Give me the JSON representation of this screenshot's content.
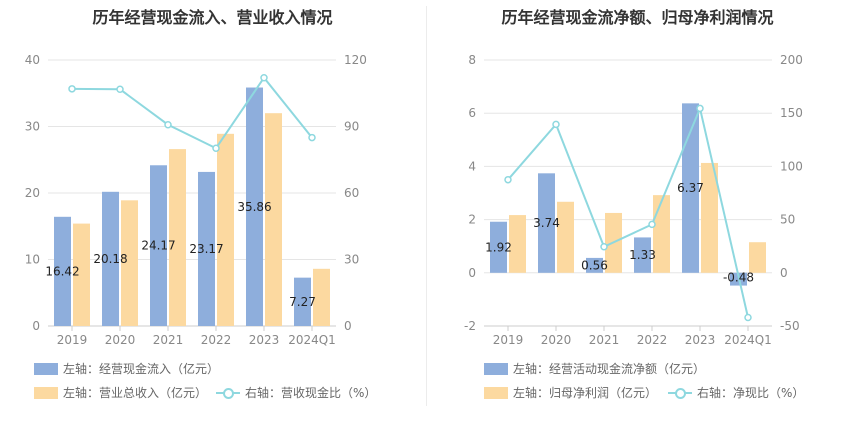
{
  "colors": {
    "bar1": "#8eaedc",
    "bar2": "#fcd9a0",
    "line": "#8ed8df",
    "grid": "#e5e5e5"
  },
  "chart_data": [
    {
      "type": "bar",
      "title": "历年经营现金流入、营业收入情况",
      "categories": [
        "2019",
        "2020",
        "2021",
        "2022",
        "2023",
        "2024Q1"
      ],
      "series": [
        {
          "name": "左轴：经营现金流入（亿元）",
          "axis": "left",
          "type": "bar",
          "values": [
            16.42,
            20.18,
            24.17,
            23.17,
            35.86,
            7.27
          ],
          "data_labels": [
            "16.42",
            "20.18",
            "24.17",
            "23.17",
            "35.86",
            "7.27"
          ]
        },
        {
          "name": "左轴：营业总收入（亿元）",
          "axis": "left",
          "type": "bar",
          "values": [
            15.4,
            18.9,
            26.6,
            28.9,
            32.0,
            8.6
          ]
        },
        {
          "name": "右轴：营收现金比（%）",
          "axis": "right",
          "type": "line",
          "values": [
            107,
            106.8,
            90.8,
            80.2,
            112,
            85
          ]
        }
      ],
      "yleft": {
        "min": 0,
        "max": 40,
        "ticks": [
          "0",
          "10",
          "20",
          "30",
          "40"
        ]
      },
      "yright": {
        "min": 0,
        "max": 120,
        "ticks": [
          "0",
          "30",
          "60",
          "90",
          "120"
        ]
      },
      "grid": true,
      "legend_position": "bottom"
    },
    {
      "type": "bar",
      "title": "历年经营现金流净额、归母净利润情况",
      "categories": [
        "2019",
        "2020",
        "2021",
        "2022",
        "2023",
        "2024Q1"
      ],
      "series": [
        {
          "name": "左轴：经营活动现金流净额（亿元）",
          "axis": "left",
          "type": "bar",
          "values": [
            1.92,
            3.74,
            0.56,
            1.33,
            6.37,
            -0.48
          ],
          "data_labels": [
            "1.92",
            "3.74",
            "0.56",
            "1.33",
            "6.37",
            "-0.48"
          ]
        },
        {
          "name": "左轴：归母净利润（亿元）",
          "axis": "left",
          "type": "bar",
          "values": [
            2.17,
            2.67,
            2.25,
            2.92,
            4.13,
            1.15
          ]
        },
        {
          "name": "右轴：净现比（%）",
          "axis": "right",
          "type": "line",
          "values": [
            87.5,
            139.5,
            24.5,
            45.5,
            154.5,
            -42
          ]
        }
      ],
      "yleft": {
        "min": -2,
        "max": 8,
        "ticks": [
          "-2",
          "0",
          "2",
          "4",
          "6",
          "8"
        ]
      },
      "yright": {
        "min": -50,
        "max": 200,
        "ticks": [
          "-50",
          "0",
          "50",
          "100",
          "150",
          "200"
        ]
      },
      "grid": true,
      "legend_position": "bottom"
    }
  ]
}
